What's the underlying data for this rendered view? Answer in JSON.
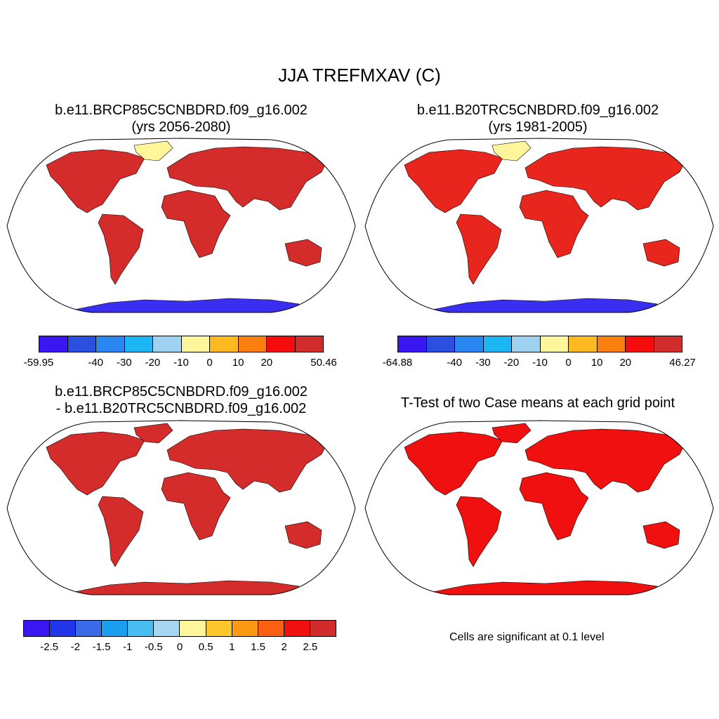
{
  "main_title": "JJA TREFMXAV (C)",
  "panels": [
    {
      "title1": "b.e11.BRCP85C5CNBDRD.f09_g16.002",
      "title2": "(yrs 2056-2080)",
      "land_color": "#d42b2b"
    },
    {
      "title1": "b.e11.B20TRC5CNBDRD.f09_g16.002",
      "title2": "(yrs 1981-2005)",
      "land_color": "#e8261e"
    },
    {
      "title1": "b.e11.BRCP85C5CNBDRD.f09_g16.002",
      "title2": "- b.e11.B20TRC5CNBDRD.f09_g16.002",
      "land_color": "#d42b2b"
    },
    {
      "title1": "T-Test of two Case means at each grid point",
      "title2": "",
      "land_color": "#f01010"
    }
  ],
  "colorbars": [
    {
      "colors": [
        "#3a16f0",
        "#2b4fe0",
        "#2a86f0",
        "#1cb6f5",
        "#9fd1f0",
        "#fff59a",
        "#fcba20",
        "#fb7f0e",
        "#f50d0d",
        "#d22b2b"
      ],
      "labels": [
        "-59.95",
        "-40",
        "-30",
        "-20",
        "-10",
        "0",
        "10",
        "20",
        "50.46"
      ]
    },
    {
      "colors": [
        "#3a16f0",
        "#2b4fe0",
        "#2a86f0",
        "#1cb6f5",
        "#9fd1f0",
        "#fff59a",
        "#fcba20",
        "#fb7f0e",
        "#f50d0d",
        "#d22b2b"
      ],
      "labels": [
        "-64.88",
        "-40",
        "-30",
        "-20",
        "-10",
        "0",
        "10",
        "20",
        "46.27"
      ]
    },
    {
      "colors": [
        "#3a16f0",
        "#2235ea",
        "#3b6ae8",
        "#1a9ef0",
        "#49bdf0",
        "#a6d6f0",
        "#fff59a",
        "#fdc62a",
        "#fb9912",
        "#fb6013",
        "#f01010",
        "#d22b2b"
      ],
      "labels": [
        "-2.5",
        "-2",
        "-1.5",
        "-1",
        "-0.5",
        "0",
        "0.5",
        "1",
        "1.5",
        "2",
        "2.5"
      ]
    }
  ],
  "note": "Cells are significant at 0.1 level",
  "antarctic_color": "#3a2ef0"
}
